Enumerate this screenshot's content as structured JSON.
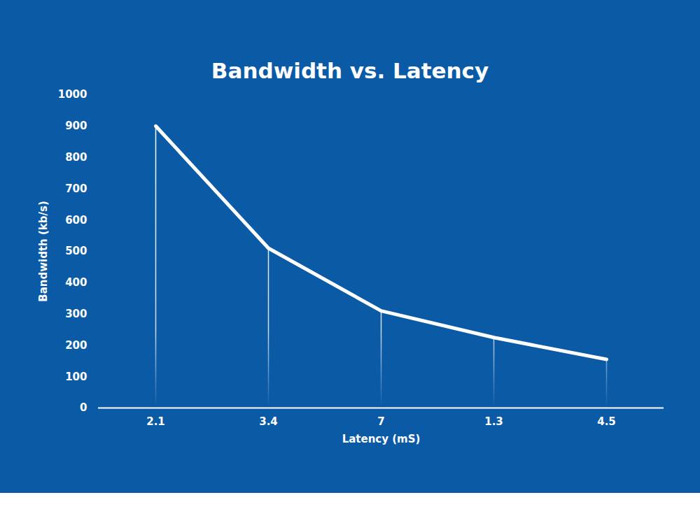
{
  "chart_data": {
    "type": "line",
    "title": "Bandwidth vs. Latency",
    "x_label": "Latency (mS)",
    "y_label": "Bandwidth (kb/s)",
    "categories": [
      "2.1",
      "3.4",
      "7",
      "1.3",
      "4.5"
    ],
    "values": [
      900,
      510,
      310,
      225,
      155
    ],
    "color": "#ffffff",
    "ylim": [
      0,
      1000
    ],
    "yticks": [
      0,
      100,
      200,
      300,
      400,
      500,
      600,
      700,
      800,
      900,
      1000
    ],
    "grid": false
  }
}
